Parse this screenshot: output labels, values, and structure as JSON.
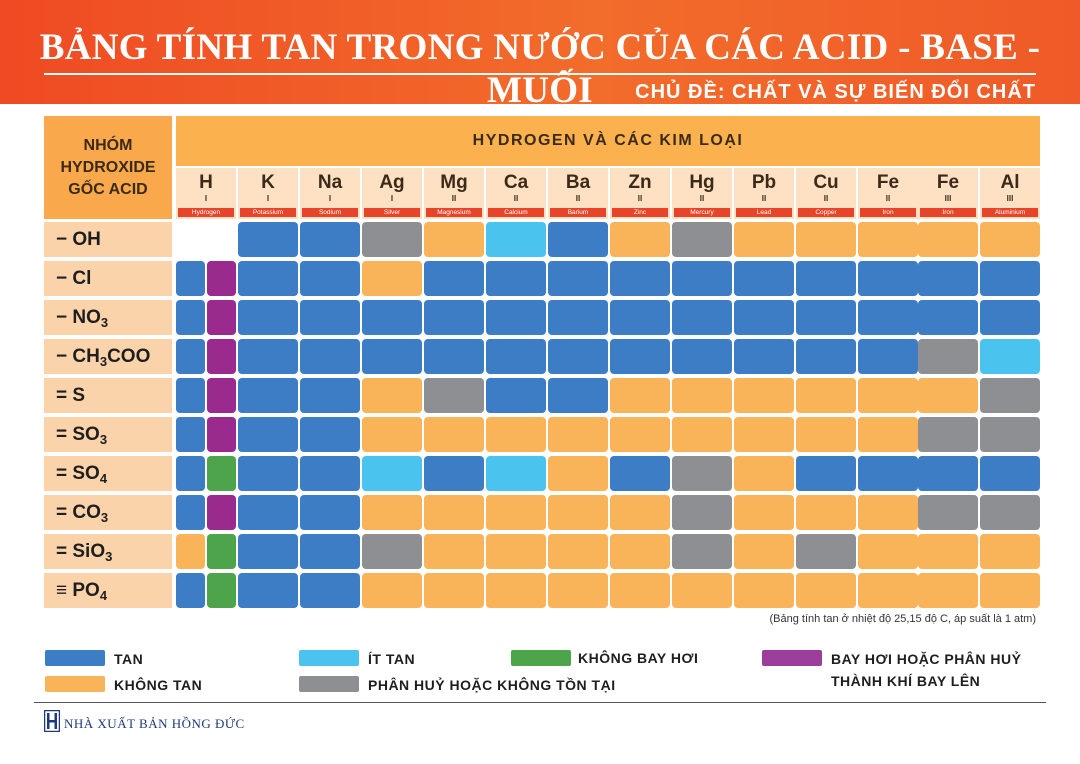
{
  "title": "BẢNG TÍNH TAN TRONG NƯỚC CỦA CÁC ACID - BASE - MUỐI",
  "subtitle": "CHỦ ĐỀ: CHẤT VÀ SỰ BIẾN ĐỔI CHẤT",
  "corner_label": [
    "NHÓM",
    "HYDROXIDE",
    "GỐC ACID"
  ],
  "top_header": "HYDROGEN VÀ CÁC KIM LOẠI",
  "columns": [
    {
      "symbol": "H",
      "valence": "I",
      "name": "Hydrogen"
    },
    {
      "symbol": "K",
      "valence": "I",
      "name": "Potassium"
    },
    {
      "symbol": "Na",
      "valence": "I",
      "name": "Sodium"
    },
    {
      "symbol": "Ag",
      "valence": "I",
      "name": "Silver"
    },
    {
      "symbol": "Mg",
      "valence": "II",
      "name": "Magnesium"
    },
    {
      "symbol": "Ca",
      "valence": "II",
      "name": "Calcium"
    },
    {
      "symbol": "Ba",
      "valence": "II",
      "name": "Barium"
    },
    {
      "symbol": "Zn",
      "valence": "II",
      "name": "Zinc"
    },
    {
      "symbol": "Hg",
      "valence": "II",
      "name": "Mercury"
    },
    {
      "symbol": "Pb",
      "valence": "II",
      "name": "Lead"
    },
    {
      "symbol": "Cu",
      "valence": "II",
      "name": "Copper"
    },
    {
      "symbol": "Fe",
      "valence": "II",
      "name": "Iron"
    },
    {
      "symbol": "Fe",
      "valence": "III",
      "name": "Iron"
    },
    {
      "symbol": "Al",
      "valence": "III",
      "name": "Aluminium"
    }
  ],
  "rows": [
    {
      "prefix": "−",
      "main": "OH",
      "sub": "",
      "tail": "",
      "cells": [
        "",
        "T",
        "T",
        "X",
        "K",
        "I",
        "T",
        "K",
        "X",
        "K",
        "K",
        "K",
        "K",
        "K"
      ]
    },
    {
      "prefix": "−",
      "main": "Cl",
      "sub": "",
      "tail": "",
      "cells": [
        "T|B",
        "T",
        "T",
        "K",
        "T",
        "T",
        "T",
        "T",
        "T",
        "T",
        "T",
        "T",
        "T",
        "T"
      ]
    },
    {
      "prefix": "−",
      "main": "NO",
      "sub": "3",
      "tail": "",
      "cells": [
        "T|B",
        "T",
        "T",
        "T",
        "T",
        "T",
        "T",
        "T",
        "T",
        "T",
        "T",
        "T",
        "T",
        "T"
      ]
    },
    {
      "prefix": "−",
      "main": "CH",
      "sub": "3",
      "tail": "COO",
      "cells": [
        "T|B",
        "T",
        "T",
        "T",
        "T",
        "T",
        "T",
        "T",
        "T",
        "T",
        "T",
        "T",
        "X",
        "I"
      ]
    },
    {
      "prefix": "=",
      "main": "S",
      "sub": "",
      "tail": "",
      "cells": [
        "T|B",
        "T",
        "T",
        "K",
        "X",
        "T",
        "T",
        "K",
        "K",
        "K",
        "K",
        "K",
        "K",
        "X"
      ]
    },
    {
      "prefix": "=",
      "main": "SO",
      "sub": "3",
      "tail": "",
      "cells": [
        "T|B",
        "T",
        "T",
        "K",
        "K",
        "K",
        "K",
        "K",
        "K",
        "K",
        "K",
        "K",
        "X",
        "X"
      ]
    },
    {
      "prefix": "=",
      "main": "SO",
      "sub": "4",
      "tail": "",
      "cells": [
        "T|G",
        "T",
        "T",
        "I",
        "T",
        "I",
        "K",
        "T",
        "X",
        "K",
        "T",
        "T",
        "T",
        "T"
      ]
    },
    {
      "prefix": "=",
      "main": "CO",
      "sub": "3",
      "tail": "",
      "cells": [
        "T|B",
        "T",
        "T",
        "K",
        "K",
        "K",
        "K",
        "K",
        "X",
        "K",
        "K",
        "K",
        "X",
        "X"
      ]
    },
    {
      "prefix": "=",
      "main": "SiO",
      "sub": "3",
      "tail": "",
      "cells": [
        "K|G",
        "T",
        "T",
        "X",
        "K",
        "K",
        "K",
        "K",
        "X",
        "K",
        "X",
        "K",
        "K",
        "K"
      ]
    },
    {
      "prefix": "≡",
      "main": "PO",
      "sub": "4",
      "tail": "",
      "cells": [
        "T|G",
        "T",
        "T",
        "K",
        "K",
        "K",
        "K",
        "K",
        "K",
        "K",
        "K",
        "K",
        "K",
        "K"
      ]
    }
  ],
  "note": "(Bảng tính tan ở nhiệt độ 25,15 độ C, áp suất là 1 atm)",
  "legend": {
    "tan": "TAN",
    "khong_tan": "KHÔNG TAN",
    "it_tan": "ÍT TAN",
    "phan_huy": "PHÂN HUỶ HOẶC KHÔNG TỒN TẠI",
    "khong_bay_hoi": "KHÔNG BAY HƠI",
    "bay_hoi_1": "BAY HƠI HOẶC PHÂN HUỶ",
    "bay_hoi_2": "THÀNH KHÍ BAY LÊN"
  },
  "publisher": "NHÀ XUẤT BẢN HỒNG ĐỨC",
  "colors": {
    "T": "#3d7dc6",
    "K": "#f9b45a",
    "I": "#4bc3ef",
    "X": "#8e8f93",
    "G": "#4ea44a",
    "B": "#9b2a8e",
    "banner": "#ef4a23"
  }
}
